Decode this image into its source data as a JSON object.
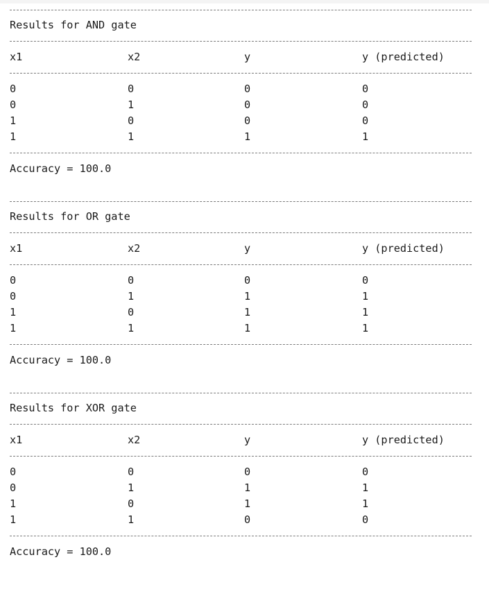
{
  "sections": [
    {
      "title": "Results for AND gate",
      "headers": [
        "x1",
        "x2",
        "y",
        "y (predicted)"
      ],
      "rows": [
        [
          "0",
          "0",
          "0",
          "0"
        ],
        [
          "0",
          "1",
          "0",
          "0"
        ],
        [
          "1",
          "0",
          "0",
          "0"
        ],
        [
          "1",
          "1",
          "1",
          "1"
        ]
      ],
      "accuracy": "Accuracy = 100.0"
    },
    {
      "title": "Results for OR gate",
      "headers": [
        "x1",
        "x2",
        "y",
        "y (predicted)"
      ],
      "rows": [
        [
          "0",
          "0",
          "0",
          "0"
        ],
        [
          "0",
          "1",
          "1",
          "1"
        ],
        [
          "1",
          "0",
          "1",
          "1"
        ],
        [
          "1",
          "1",
          "1",
          "1"
        ]
      ],
      "accuracy": "Accuracy = 100.0"
    },
    {
      "title": "Results for XOR gate",
      "headers": [
        "x1",
        "x2",
        "y",
        "y (predicted)"
      ],
      "rows": [
        [
          "0",
          "0",
          "0",
          "0"
        ],
        [
          "0",
          "1",
          "1",
          "1"
        ],
        [
          "1",
          "0",
          "1",
          "1"
        ],
        [
          "1",
          "1",
          "0",
          "0"
        ]
      ],
      "accuracy": "Accuracy = 100.0"
    }
  ]
}
